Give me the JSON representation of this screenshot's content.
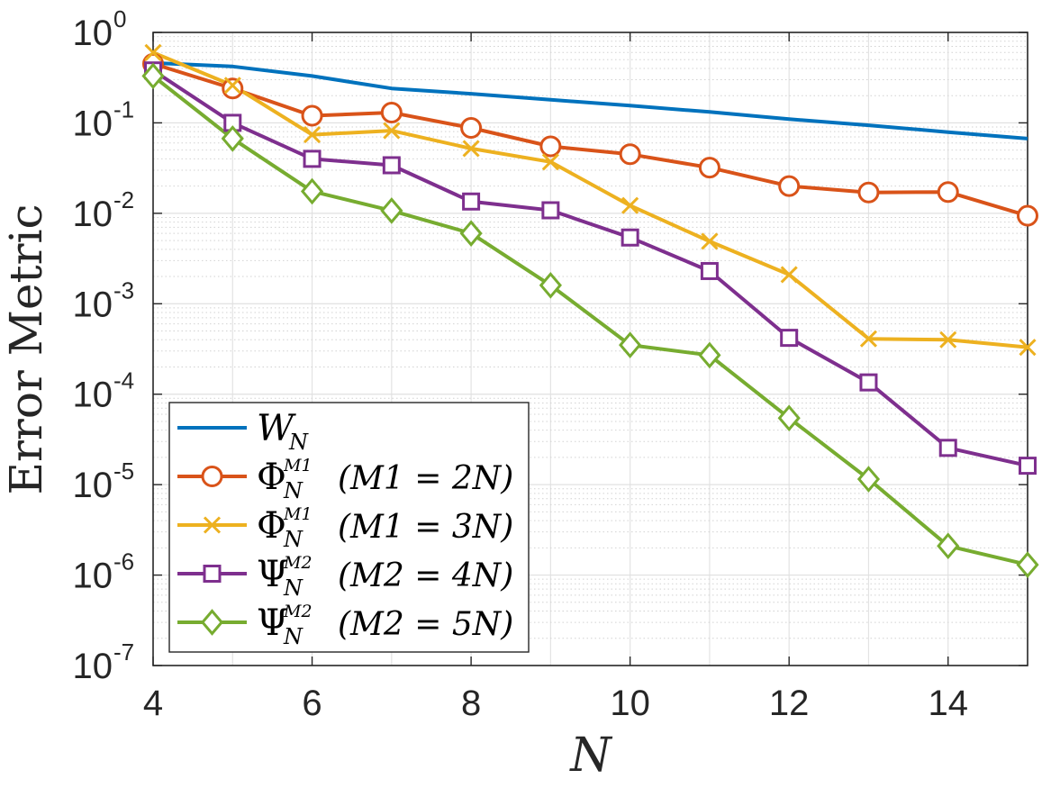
{
  "chart_data": {
    "type": "line",
    "yscale": "log",
    "xlabel": "N",
    "ylabel": "Error Metric",
    "xlim": [
      4,
      15
    ],
    "ylim": [
      1e-07,
      1
    ],
    "grid": true,
    "legend_position": "bottom-left",
    "x_ticks": [
      {
        "value": 4,
        "label": "4"
      },
      {
        "value": 6,
        "label": "6"
      },
      {
        "value": 8,
        "label": "8"
      },
      {
        "value": 10,
        "label": "10"
      },
      {
        "value": 12,
        "label": "12"
      },
      {
        "value": 14,
        "label": "14"
      }
    ],
    "y_ticks": [
      {
        "value": 1,
        "base": "10",
        "exp": "0"
      },
      {
        "value": 0.1,
        "base": "10",
        "exp": "-1"
      },
      {
        "value": 0.01,
        "base": "10",
        "exp": "-2"
      },
      {
        "value": 0.001,
        "base": "10",
        "exp": "-3"
      },
      {
        "value": 0.0001,
        "base": "10",
        "exp": "-4"
      },
      {
        "value": 1e-05,
        "base": "10",
        "exp": "-5"
      },
      {
        "value": 1e-06,
        "base": "10",
        "exp": "-6"
      },
      {
        "value": 1e-07,
        "base": "10",
        "exp": "-7"
      }
    ],
    "x": [
      4,
      5,
      6,
      7,
      8,
      9,
      10,
      11,
      12,
      13,
      14,
      15
    ],
    "series": [
      {
        "name": "W_N",
        "legend": {
          "sym": "W",
          "sub": "N",
          "sup": "",
          "cond": ""
        },
        "color": "#0072BD",
        "marker": "none",
        "values": [
          0.46,
          0.42,
          0.33,
          0.24,
          0.21,
          0.18,
          0.155,
          0.132,
          0.11,
          0.094,
          0.079,
          0.067
        ]
      },
      {
        "name": "Phi_N^{M1} (M1 = 2N)",
        "legend": {
          "sym": "Φ",
          "sub": "N",
          "sup": "M1",
          "cond": "(M1 = 2N)"
        },
        "color": "#D95319",
        "marker": "circle",
        "values": [
          0.45,
          0.24,
          0.12,
          0.13,
          0.088,
          0.055,
          0.045,
          0.032,
          0.02,
          0.017,
          0.0172,
          0.0094
        ]
      },
      {
        "name": "Phi_N^{M1} (M1 = 3N)",
        "legend": {
          "sym": "Φ",
          "sub": "N",
          "sup": "M1",
          "cond": "(M1 = 3N)"
        },
        "color": "#EDB120",
        "marker": "x",
        "values": [
          0.6,
          0.26,
          0.074,
          0.082,
          0.052,
          0.037,
          0.0122,
          0.0049,
          0.0021,
          0.00041,
          0.0004,
          0.00033
        ]
      },
      {
        "name": "Psi_N^{M2} (M2 = 4N)",
        "legend": {
          "sym": "Ψ",
          "sub": "N",
          "sup": "M2",
          "cond": "(M2 = 4N)"
        },
        "color": "#7E2F8E",
        "marker": "square",
        "values": [
          0.38,
          0.1,
          0.04,
          0.034,
          0.0135,
          0.0108,
          0.0054,
          0.0023,
          0.00042,
          0.000135,
          2.55e-05,
          1.62e-05
        ]
      },
      {
        "name": "Psi_N^{M2} (M2 = 5N)",
        "legend": {
          "sym": "Ψ",
          "sub": "N",
          "sup": "M2",
          "cond": "(M2 = 5N)"
        },
        "color": "#77AC30",
        "marker": "diamond",
        "values": [
          0.33,
          0.067,
          0.0175,
          0.0107,
          0.006,
          0.0016,
          0.00035,
          0.00027,
          5.45e-05,
          1.15e-05,
          2.1e-06,
          1.3e-06
        ]
      }
    ]
  }
}
